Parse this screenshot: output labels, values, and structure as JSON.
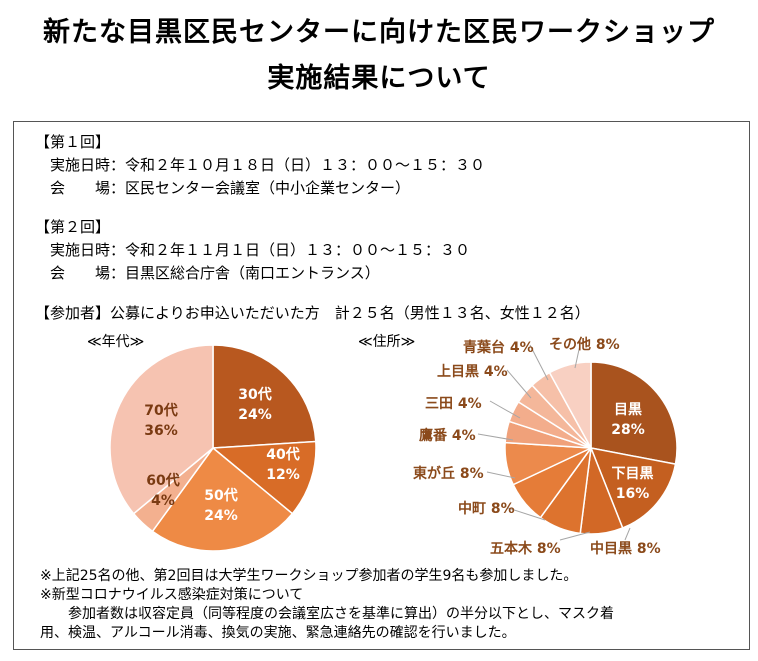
{
  "title": {
    "line1": "新たな目黒区民センターに向けた区民ワークショップ",
    "line2": "実施結果について"
  },
  "session1": {
    "heading": "【第１回】",
    "date": "　実施日時：令和２年１０月１８日（日）１３：００～１５：３０",
    "venue": "　会　　場：区民センター会議室（中小企業センター）"
  },
  "session2": {
    "heading": "【第２回】",
    "date": "　実施日時：令和２年１１月１日（日）１３：００～１５：３０",
    "venue": "　会　　場：目黒区総合庁舎（南口エントランス）"
  },
  "participants": "【参加者】公募によりお申込いただいた方　計２５名（男性１３名、女性１２名）",
  "chart_data": [
    {
      "type": "pie",
      "title": "≪年代≫",
      "slices": [
        {
          "label": "30代",
          "value": 24,
          "text": "24%",
          "color": "#b8581f"
        },
        {
          "label": "40代",
          "value": 12,
          "text": "12%",
          "color": "#d86c27"
        },
        {
          "label": "50代",
          "value": 24,
          "text": "24%",
          "color": "#ee8a45"
        },
        {
          "label": "60代",
          "value": 4,
          "text": "4%",
          "color": "#f3b08f"
        },
        {
          "label": "70代",
          "value": 36,
          "text": "36%",
          "color": "#f6c3b1"
        }
      ]
    },
    {
      "type": "pie",
      "title": "≪住所≫",
      "slices": [
        {
          "label": "目黒",
          "value": 28,
          "text": "28%",
          "color": "#a9531e"
        },
        {
          "label": "下目黒",
          "value": 16,
          "text": "16%",
          "color": "#c45f20"
        },
        {
          "label": "中目黒",
          "value": 8,
          "text": "8%",
          "color": "#d26826"
        },
        {
          "label": "五本木",
          "value": 8,
          "text": "8%",
          "color": "#dd732e"
        },
        {
          "label": "中町",
          "value": 8,
          "text": "8%",
          "color": "#e57c38"
        },
        {
          "label": "東が丘",
          "value": 8,
          "text": "8%",
          "color": "#ec8a4c"
        },
        {
          "label": "鷹番",
          "value": 4,
          "text": "4%",
          "color": "#f0a17a"
        },
        {
          "label": "三田",
          "value": 4,
          "text": "4%",
          "color": "#f3ad8c"
        },
        {
          "label": "上目黒",
          "value": 4,
          "text": "4%",
          "color": "#f4b79a"
        },
        {
          "label": "青葉台",
          "value": 4,
          "text": "4%",
          "color": "#f6c0a8"
        },
        {
          "label": "その他",
          "value": 8,
          "text": "8%",
          "color": "#f8d0c2"
        }
      ]
    }
  ],
  "notes": {
    "line1": "※上記25名の他、第2回目は大学生ワークショップ参加者の学生9名も参加しました。",
    "line2": "※新型コロナウイルス感染症対策について",
    "line3": "　　参加者数は収容定員（同等程度の会議室広さを基準に算出）の半分以下とし、マスク着",
    "line4": "用、検温、アルコール消毒、換気の実施、緊急連絡先の確認を行いました。"
  }
}
